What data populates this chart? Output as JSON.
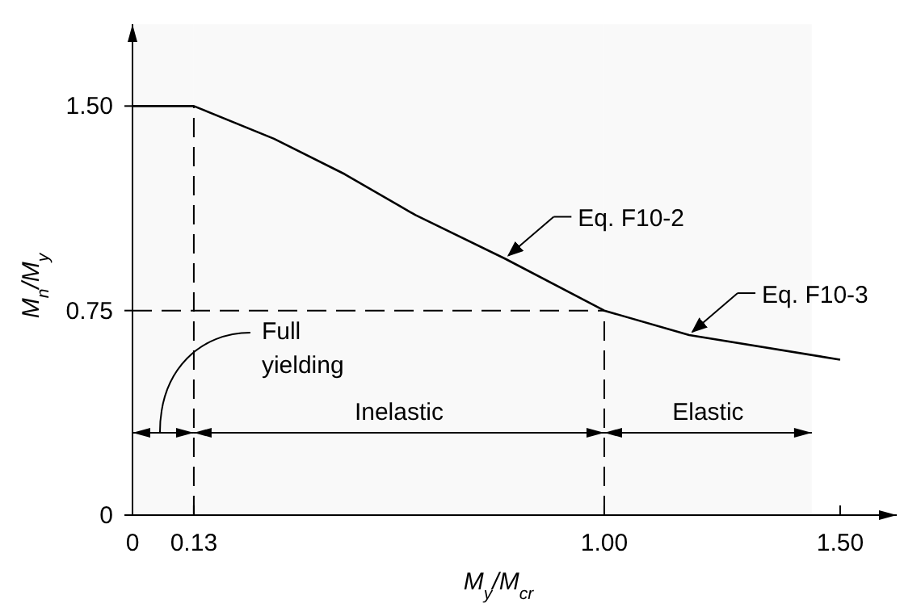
{
  "chart_data": {
    "type": "line",
    "xlabel": "M$_{y}$/M$_{cr}$",
    "ylabel": "M$_{n}$/M$_{y}$",
    "x": [
      0,
      0.13,
      0.3,
      0.45,
      0.6,
      0.79,
      1.0,
      1.18,
      1.5
    ],
    "series": [
      {
        "color": "#000000",
        "values": [
          1.5,
          1.5,
          1.38,
          1.25,
          1.1,
          0.94,
          0.75,
          0.66,
          0.57
        ]
      }
    ],
    "xlim": [
      0,
      1.62
    ],
    "ylim": [
      0,
      1.8
    ],
    "xticks": [
      0,
      0.13,
      {
        "value": 1,
        "label": "1.00"
      },
      {
        "value": 1.5,
        "label": "1.50"
      }
    ],
    "yticks": [
      0,
      {
        "value": 0.75,
        "label": "0.75"
      },
      {
        "value": 1.5,
        "label": "1.50"
      }
    ],
    "ref_lines": [
      {
        "axis": "x",
        "value": 0.13,
        "line_style": "dashed"
      },
      {
        "axis": "x",
        "value": 1.0,
        "line_style": "dashed"
      },
      {
        "axis": "y",
        "value": 0.75,
        "line_style": "dashed"
      }
    ],
    "bands": [
      {
        "axis": "x",
        "from": 0,
        "to": 0.13,
        "label": "Full yielding"
      },
      {
        "axis": "x",
        "from": 0.13,
        "to": 1.0,
        "label": "Inelastic"
      },
      {
        "axis": "x",
        "from": 1.0,
        "to": 1.44,
        "label": "Elastic"
      }
    ],
    "annotations": [
      {
        "text": "Eq. F10-2",
        "x": 0.79,
        "y": 0.94
      },
      {
        "text": "Eq. F10-3",
        "x": 1.18,
        "y": 0.66
      }
    ],
    "grid": false,
    "marker": "none",
    "line_style": "solid"
  }
}
